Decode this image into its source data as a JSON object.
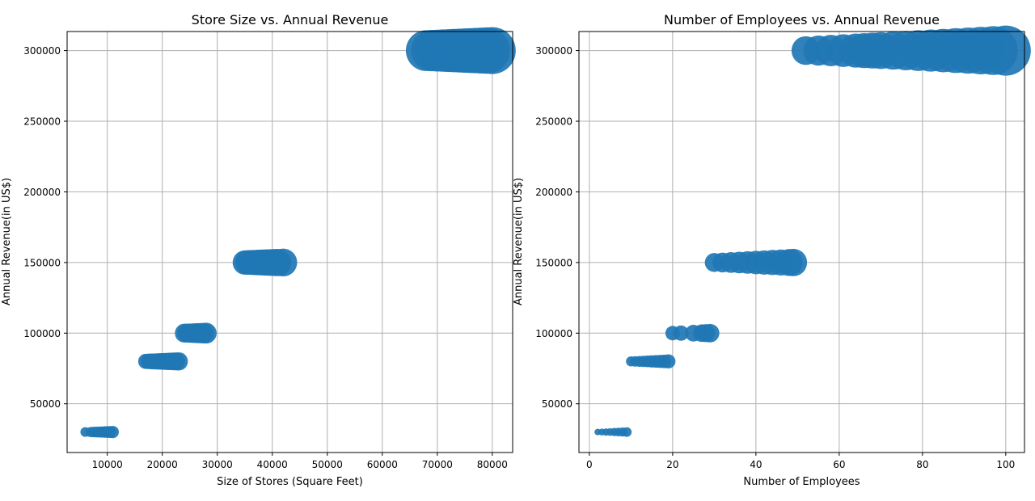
{
  "chart_data": [
    {
      "type": "scatter",
      "title": "Store Size vs. Annual Revenue",
      "xlabel": "Size of Stores (Square Feet)",
      "ylabel": "Annual Revenue(in US$)",
      "xlim": [
        2700,
        83700
      ],
      "ylim": [
        15500,
        313500
      ],
      "xticks": [
        10000,
        20000,
        30000,
        40000,
        50000,
        60000,
        70000,
        80000
      ],
      "yticks": [
        50000,
        100000,
        150000,
        200000,
        250000,
        300000
      ],
      "grid": true,
      "color": "#1f77b4",
      "size_note": "marker size encodes store size",
      "series": [
        {
          "x": [
            6000,
            7000,
            7500,
            8000,
            8500,
            9000,
            9500,
            10000,
            10500,
            11000
          ],
          "y": 30000
        },
        {
          "x": [
            17000,
            17500,
            18000,
            18500,
            19000,
            19500,
            20000,
            20500,
            21000,
            21500,
            22000,
            22500,
            23000
          ],
          "y": 80000
        },
        {
          "x": [
            24000,
            24500,
            25000,
            25500,
            26000,
            26500,
            27000,
            27500,
            28000
          ],
          "y": 100000
        },
        {
          "x": [
            35000,
            35500,
            36000,
            36500,
            37000,
            37500,
            38000,
            38500,
            39000,
            39500,
            40000,
            40500,
            41000,
            42000
          ],
          "y": 150000
        },
        {
          "x": [
            68000,
            69000,
            70000,
            71000,
            72000,
            73000,
            74000,
            75000,
            76000,
            77000,
            78000,
            79000,
            80000
          ],
          "y": 300000
        }
      ]
    },
    {
      "type": "scatter",
      "title": "Number of Employees vs. Annual Revenue",
      "xlabel": "Number of Employees",
      "ylabel": "Annual Revenue(in US$)",
      "xlim": [
        -2.5,
        104.5
      ],
      "ylim": [
        15500,
        313500
      ],
      "xticks": [
        0,
        20,
        40,
        60,
        80,
        100
      ],
      "yticks": [
        50000,
        100000,
        150000,
        200000,
        250000,
        300000
      ],
      "grid": true,
      "color": "#1f77b4",
      "size_note": "marker size encodes number of employees",
      "series": [
        {
          "x": [
            2,
            3,
            4,
            5,
            6,
            7,
            8,
            9
          ],
          "y": 30000
        },
        {
          "x": [
            10,
            11,
            12,
            13,
            14,
            15,
            16,
            17,
            18,
            19
          ],
          "y": 80000
        },
        {
          "x": [
            20,
            22,
            25,
            27,
            28,
            29
          ],
          "y": 100000
        },
        {
          "x": [
            30,
            32,
            34,
            36,
            38,
            40,
            42,
            44,
            46,
            48,
            49
          ],
          "y": 150000
        },
        {
          "x": [
            52,
            55,
            58,
            61,
            64,
            66,
            68,
            70,
            73,
            76,
            79,
            82,
            85,
            88,
            91,
            94,
            97,
            100
          ],
          "y": 300000
        }
      ]
    }
  ]
}
